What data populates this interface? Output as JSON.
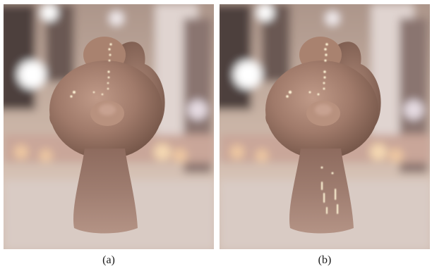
{
  "panels": [
    {
      "id": "a",
      "caption": "(a)"
    },
    {
      "id": "b",
      "caption": "(b)"
    }
  ],
  "colors": {
    "background_warm": "#c9b2a2",
    "object_base": "#a47e6e",
    "highlight": "#fff4d6",
    "lights": "#e8c9a8"
  }
}
